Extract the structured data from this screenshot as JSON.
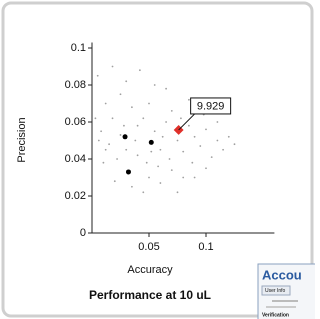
{
  "chart_data": {
    "type": "scatter",
    "title": "Performance at 10 uL",
    "x_label": "Accuracy",
    "y_label": "Precision",
    "xlim": [
      0,
      0.16
    ],
    "ylim": [
      0,
      0.103
    ],
    "xticks": [
      0.05,
      0.1
    ],
    "yticks": [
      0,
      0.02,
      0.04,
      0.06,
      0.08,
      0.1
    ],
    "series": [
      {
        "color": "#a0a0a0",
        "x": [
          0.005,
          0.012,
          0.018,
          0.008,
          0.015,
          0.022,
          0.01,
          0.025,
          0.03,
          0.035,
          0.04,
          0.045,
          0.05,
          0.055,
          0.06,
          0.065,
          0.07,
          0.075,
          0.08,
          0.085,
          0.09,
          0.095,
          0.1,
          0.105,
          0.11,
          0.115,
          0.12,
          0.125,
          0.02,
          0.035,
          0.05,
          0.06,
          0.07,
          0.08,
          0.04,
          0.028,
          0.038,
          0.048,
          0.058,
          0.068,
          0.078,
          0.088,
          0.098,
          0.018,
          0.042,
          0.055,
          0.065,
          0.085,
          0.012,
          0.03,
          0.045,
          0.075,
          0.09,
          0.1,
          0.11,
          0.003,
          0.006,
          0.025,
          0.052,
          0.062
        ],
        "y": [
          0.085,
          0.07,
          0.062,
          0.055,
          0.048,
          0.04,
          0.038,
          0.075,
          0.082,
          0.068,
          0.058,
          0.062,
          0.07,
          0.055,
          0.045,
          0.06,
          0.066,
          0.05,
          0.044,
          0.058,
          0.052,
          0.047,
          0.056,
          0.041,
          0.05,
          0.045,
          0.052,
          0.048,
          0.028,
          0.025,
          0.03,
          0.027,
          0.034,
          0.03,
          0.042,
          0.058,
          0.05,
          0.038,
          0.036,
          0.04,
          0.062,
          0.038,
          0.064,
          0.09,
          0.088,
          0.08,
          0.078,
          0.072,
          0.045,
          0.045,
          0.022,
          0.022,
          0.03,
          0.035,
          0.06,
          0.062,
          0.05,
          0.053,
          0.044,
          0.052
        ]
      },
      {
        "color": "#000000",
        "x": [
          0.029,
          0.052,
          0.032
        ],
        "y": [
          0.052,
          0.049,
          0.033
        ]
      },
      {
        "color": "#e0302a",
        "x": [
          0.076
        ],
        "y": [
          0.0557
        ],
        "value_labels": [
          "9.929"
        ]
      }
    ]
  },
  "overlay": {
    "title": "Accou",
    "tab": "User Info",
    "section": "Verification"
  }
}
